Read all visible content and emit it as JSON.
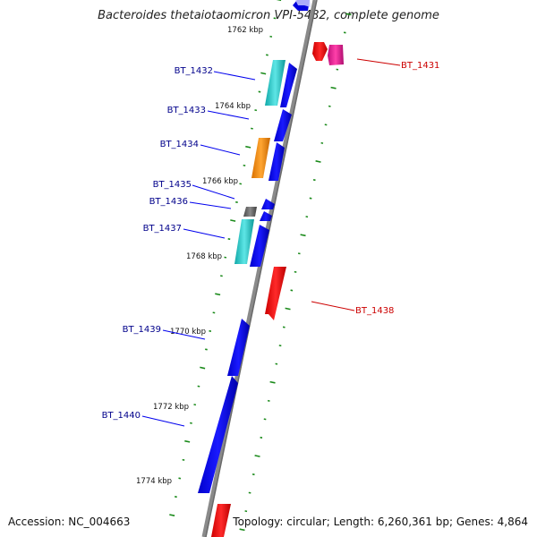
{
  "title": "Bacteroides thetaiotaomicron VPI-5482, complete genome",
  "footer": {
    "accession_label": "Accession:",
    "accession_value": "NC_004663",
    "topology_label": "Topology:",
    "topology_value": "circular;",
    "length_label": "Length:",
    "length_value": "6,260,361 bp;",
    "genes_label": "Genes:",
    "genes_value": "4,864"
  },
  "colors": {
    "backbone": "#808080",
    "forward_label": "#cc0000",
    "reverse_label": "#00008b",
    "tick": "#1a8a1a",
    "blue": "#0000ee",
    "teal": "#20c8c8",
    "orange": "#ff8c00",
    "red": "#ff0000",
    "magenta": "#e0148c",
    "gray": "#606060"
  },
  "scale": {
    "unit": "kbp",
    "labels": [
      {
        "kbp": 1762,
        "text": "1762 kbp"
      },
      {
        "kbp": 1764,
        "text": "1764 kbp"
      },
      {
        "kbp": 1766,
        "text": "1766 kbp"
      },
      {
        "kbp": 1768,
        "text": "1768 kbp"
      },
      {
        "kbp": 1770,
        "text": "1770 kbp"
      },
      {
        "kbp": 1772,
        "text": "1772 kbp"
      },
      {
        "kbp": 1774,
        "text": "1774 kbp"
      }
    ]
  },
  "genes": [
    {
      "name": "BT_1431",
      "strand": "+",
      "labelled": true
    },
    {
      "name": "BT_1432",
      "strand": "-",
      "labelled": true
    },
    {
      "name": "BT_1433",
      "strand": "-",
      "labelled": true
    },
    {
      "name": "BT_1434",
      "strand": "-",
      "labelled": true
    },
    {
      "name": "BT_1435",
      "strand": "-",
      "labelled": true
    },
    {
      "name": "BT_1436",
      "strand": "-",
      "labelled": true
    },
    {
      "name": "BT_1437",
      "strand": "-",
      "labelled": true
    },
    {
      "name": "BT_1438",
      "strand": "+",
      "labelled": true
    },
    {
      "name": "BT_1439",
      "strand": "-",
      "labelled": true
    },
    {
      "name": "BT_1440",
      "strand": "-",
      "labelled": true
    }
  ]
}
